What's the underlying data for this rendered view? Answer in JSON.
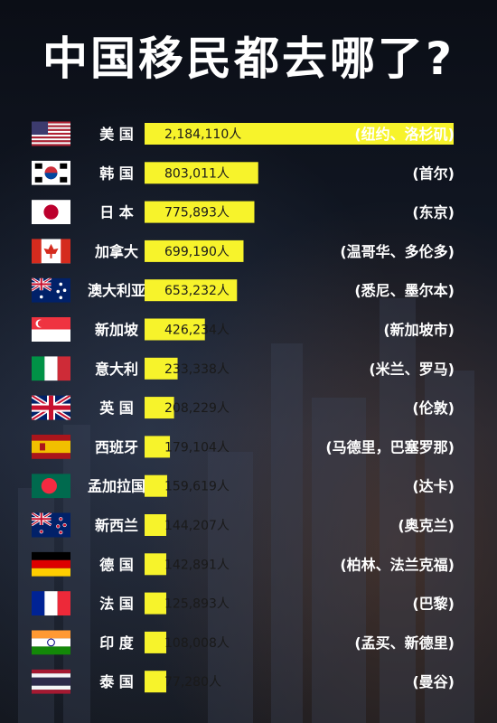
{
  "page": {
    "title": "中国移民都去哪了?"
  },
  "colors": {
    "bar": "#f7f32b",
    "background": "#0d111a",
    "text": "#ffffff"
  },
  "chart_data": {
    "type": "bar",
    "orientation": "horizontal",
    "title": "中国移民都去哪了?",
    "xlabel": "",
    "ylabel": "",
    "grid": false,
    "xlim": [
      0,
      2184110
    ],
    "categories": [
      "美 国",
      "韩 国",
      "日 本",
      "加拿大",
      "澳大利亚",
      "新加坡",
      "意大利",
      "英 国",
      "西班牙",
      "孟加拉国",
      "新西兰",
      "德 国",
      "法 国",
      "印 度",
      "泰 国"
    ],
    "values": [
      2184110,
      803011,
      775893,
      699190,
      653232,
      426234,
      233338,
      208229,
      179104,
      159619,
      144207,
      142891,
      125893,
      108008,
      77280
    ],
    "value_labels": [
      "2,184,110人",
      "803,011人",
      "775,893人",
      "699,190人",
      "653,232人",
      "426,234人",
      "233,338人",
      "208,229人",
      "179,104人",
      "159,619人",
      "144,207人",
      "142,891人",
      "125,893人",
      "108,008人",
      "77,280人"
    ],
    "cities": [
      "(纽约、洛杉矶)",
      "(首尔)",
      "(东京)",
      "(温哥华、多伦多)",
      "(悉尼、墨尔本)",
      "(新加坡市)",
      "(米兰、罗马)",
      "(伦敦)",
      "(马德里，巴塞罗那)",
      "(达卡)",
      "(奥克兰)",
      "(柏林、法兰克福)",
      "(巴黎)",
      "(孟买、新德里)",
      "(曼谷)"
    ],
    "flags": [
      "us-flag",
      "kr-flag",
      "jp-flag",
      "ca-flag",
      "au-flag",
      "sg-flag",
      "it-flag",
      "gb-flag",
      "es-flag",
      "bd-flag",
      "nz-flag",
      "de-flag",
      "fr-flag",
      "in-flag",
      "th-flag"
    ]
  }
}
